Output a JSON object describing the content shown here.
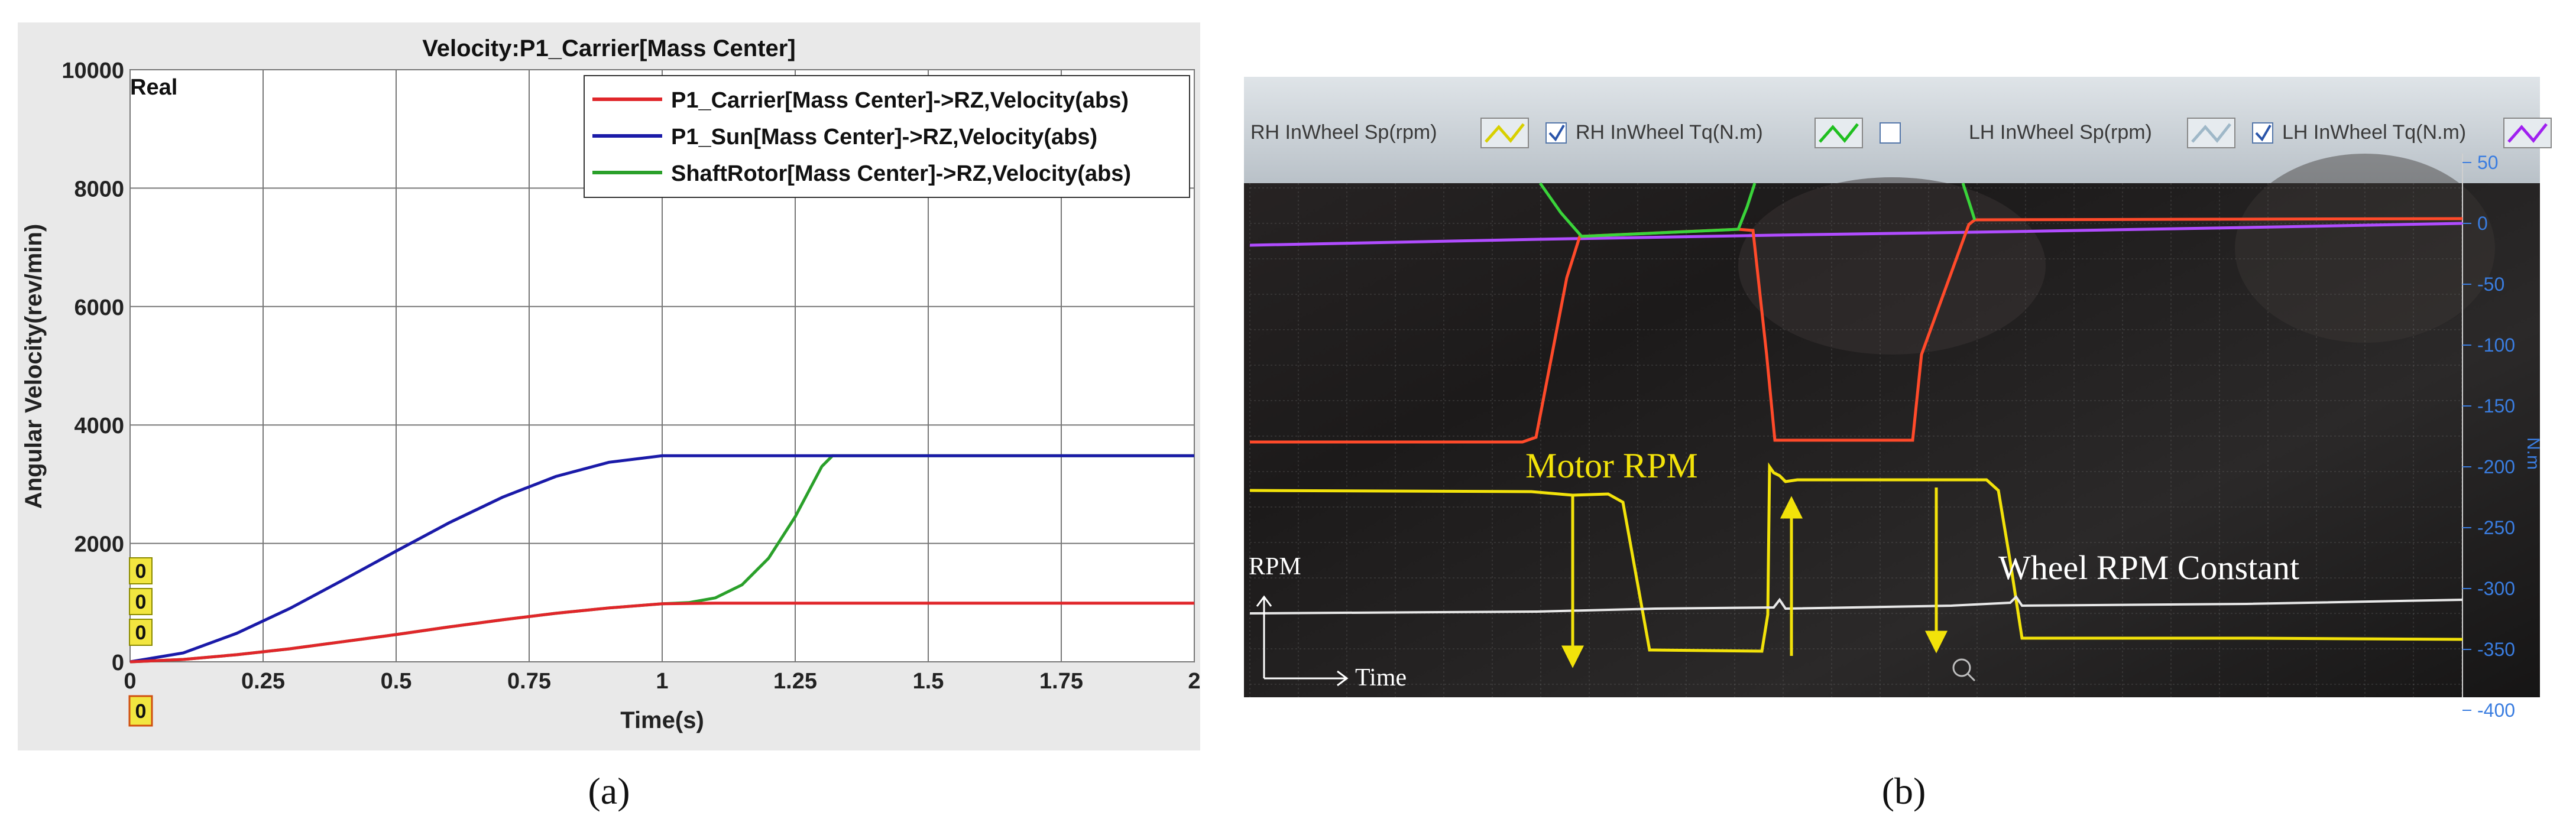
{
  "panel_a": {
    "title": "Velocity:P1_Carrier[Mass Center]",
    "real_label": "Real",
    "ylabel": "Angular Velocity(rev/min)",
    "xlabel": "Time(s)",
    "side_marks": [
      "0",
      "0",
      "0",
      "0"
    ],
    "chart_data": {
      "type": "line",
      "title": "Velocity:P1_Carrier[Mass Center]",
      "xlabel": "Time(s)",
      "ylabel": "Angular Velocity(rev/min)",
      "xlim": [
        0,
        2
      ],
      "ylim": [
        0,
        10000
      ],
      "x_ticks": [
        "0",
        "0.25",
        "0.5",
        "0.75",
        "1",
        "1.25",
        "1.5",
        "1.75",
        "2"
      ],
      "y_ticks": [
        "0",
        "2000",
        "4000",
        "6000",
        "8000",
        "10000"
      ],
      "grid": true,
      "legend_position": "top-right",
      "series": [
        {
          "name": "P1_Carrier[Mass Center]->RZ,Velocity(abs)",
          "color": "#e0262a",
          "points": [
            [
              0,
              0
            ],
            [
              0.1,
              40
            ],
            [
              0.2,
              120
            ],
            [
              0.3,
              220
            ],
            [
              0.4,
              340
            ],
            [
              0.5,
              460
            ],
            [
              0.6,
              590
            ],
            [
              0.7,
              710
            ],
            [
              0.8,
              820
            ],
            [
              0.9,
              910
            ],
            [
              1.0,
              980
            ],
            [
              1.1,
              990
            ],
            [
              1.25,
              990
            ],
            [
              1.5,
              990
            ],
            [
              1.75,
              990
            ],
            [
              2.0,
              990
            ]
          ]
        },
        {
          "name": "P1_Sun[Mass Center]->RZ,Velocity(abs)",
          "color": "#1a1aa8",
          "points": [
            [
              0,
              0
            ],
            [
              0.1,
              150
            ],
            [
              0.2,
              480
            ],
            [
              0.3,
              900
            ],
            [
              0.4,
              1380
            ],
            [
              0.5,
              1870
            ],
            [
              0.6,
              2350
            ],
            [
              0.7,
              2780
            ],
            [
              0.8,
              3130
            ],
            [
              0.9,
              3370
            ],
            [
              1.0,
              3480
            ],
            [
              1.1,
              3480
            ],
            [
              1.25,
              3480
            ],
            [
              1.5,
              3480
            ],
            [
              1.75,
              3480
            ],
            [
              2.0,
              3480
            ]
          ]
        },
        {
          "name": "ShaftRotor[Mass Center]->RZ,Velocity(abs)",
          "color": "#2aa02a",
          "points": [
            [
              0,
              0
            ],
            [
              0.1,
              40
            ],
            [
              0.2,
              120
            ],
            [
              0.3,
              220
            ],
            [
              0.4,
              340
            ],
            [
              0.5,
              460
            ],
            [
              0.6,
              590
            ],
            [
              0.7,
              710
            ],
            [
              0.8,
              820
            ],
            [
              0.9,
              910
            ],
            [
              1.0,
              980
            ],
            [
              1.05,
              1000
            ],
            [
              1.1,
              1080
            ],
            [
              1.15,
              1300
            ],
            [
              1.2,
              1750
            ],
            [
              1.25,
              2450
            ],
            [
              1.3,
              3300
            ],
            [
              1.32,
              3480
            ],
            [
              1.5,
              3480
            ],
            [
              1.75,
              3480
            ],
            [
              2.0,
              3480
            ]
          ]
        }
      ]
    }
  },
  "panel_b": {
    "legend": [
      {
        "label": "RH InWheel Sp(rpm)",
        "swatch": "#d8d000"
      },
      {
        "label": "RH InWheel Tq(N.m)",
        "swatch": "#1fbf1f"
      },
      {
        "label": "LH InWheel Sp(rpm)",
        "swatch": "#9fb8c8"
      },
      {
        "label": "LH InWheel Tq(N.m)",
        "swatch": "#a020f0"
      }
    ],
    "right_axis_unit": "N.m",
    "right_ticks": [
      "50",
      "0",
      "-50",
      "-100",
      "-150",
      "-200",
      "-250",
      "-300",
      "-350",
      "-400"
    ],
    "motor_label": "Motor RPM",
    "wheel_label": "Wheel RPM Constant",
    "rpm_axis_label": "RPM",
    "time_axis_label": "Time"
  },
  "captions": {
    "a": "(a)",
    "b": "(b)"
  }
}
